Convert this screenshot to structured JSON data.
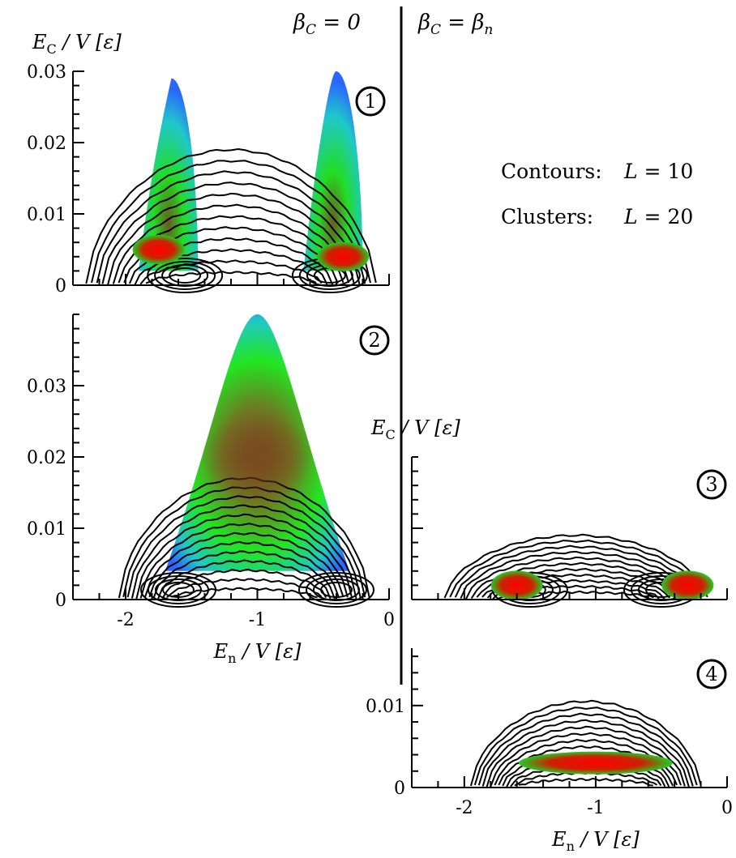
{
  "columns": {
    "left": {
      "pre": "β",
      "sub": "C",
      "mid": " = 0",
      "sub2": ""
    },
    "right": {
      "pre": "β",
      "sub": "C",
      "mid": " = β",
      "sub2": "n"
    }
  },
  "legend": [
    {
      "label": "Contours:",
      "lpre": "L",
      "lval": " = 10"
    },
    {
      "label": "Clusters:",
      "lpre": "L",
      "lval": " = 20"
    }
  ],
  "axis_text": {
    "y_pre": "E",
    "y_sub": "C",
    "y_post": " / V [ε]",
    "x_pre": "E",
    "x_sub": "n",
    "x_post": " / V [ε]"
  },
  "colors": {
    "blue": "#2a66ff",
    "cyan": "#1fc8c8",
    "green": "#22e622",
    "olive": "#8a8a28",
    "brown": "#7a4a20",
    "red": "#ee1111",
    "contour": "#000000"
  },
  "chart_data": [
    {
      "id": "panel-1",
      "type": "heatmap",
      "badge": "1",
      "xlim": [
        -2.4,
        0
      ],
      "ylim": [
        0,
        0.03
      ],
      "yticks": [
        0,
        0.01,
        0.02,
        0.03
      ],
      "ytick_labels": [
        "0",
        "0.01",
        "0.02",
        "0.03"
      ],
      "xticks": [
        -2,
        -1,
        0
      ],
      "xtick_labels": [],
      "show_ylabel": true,
      "show_xlabel": false,
      "clusters": [
        {
          "x_range": [
            -1.9,
            -1.45
          ],
          "peak_y": 0.029,
          "base_y": 0.002
        },
        {
          "x_range": [
            -0.65,
            -0.2
          ],
          "peak_y": 0.03,
          "base_y": 0.002
        }
      ],
      "hotspots": [
        {
          "x": -1.75,
          "y": 0.005,
          "color": "red"
        },
        {
          "x": -0.35,
          "y": 0.004,
          "color": "red"
        }
      ],
      "contours": {
        "x_range": [
          -2.3,
          -0.1
        ],
        "max_y": 0.019,
        "levels": 12,
        "holes": [
          -1.55,
          -0.45
        ]
      }
    },
    {
      "id": "panel-2",
      "type": "heatmap",
      "badge": "2",
      "xlim": [
        -2.4,
        0
      ],
      "ylim": [
        0,
        0.04
      ],
      "yticks": [
        0,
        0.01,
        0.02,
        0.03
      ],
      "ytick_labels": [
        "0",
        "0.01",
        "0.02",
        "0.03"
      ],
      "xticks": [
        -2,
        -1,
        0
      ],
      "xtick_labels": [
        "-2",
        "-1",
        "0"
      ],
      "show_ylabel": false,
      "show_xlabel": true,
      "clusters": [
        {
          "x_range": [
            -1.7,
            -0.3
          ],
          "peak_y": 0.04,
          "base_y": 0.004
        }
      ],
      "hotspots": [
        {
          "x": -1.0,
          "y": 0.02,
          "color": "brown"
        }
      ],
      "contours": {
        "x_range": [
          -2.05,
          -0.15
        ],
        "max_y": 0.017,
        "levels": 13,
        "holes": [
          -1.6,
          -0.4
        ]
      }
    },
    {
      "id": "panel-3",
      "type": "heatmap",
      "badge": "3",
      "xlim": [
        -2.4,
        0
      ],
      "ylim": [
        0,
        0.02
      ],
      "yticks": [
        0,
        0.01
      ],
      "ytick_labels": [],
      "xticks": [
        -2,
        -1,
        0
      ],
      "xtick_labels": [],
      "show_ylabel": true,
      "show_xlabel": false,
      "clusters": [],
      "hotspots": [
        {
          "x": -1.6,
          "y": 0.002,
          "color": "red"
        },
        {
          "x": -0.3,
          "y": 0.002,
          "color": "red"
        }
      ],
      "contours": {
        "x_range": [
          -2.15,
          -0.15
        ],
        "max_y": 0.009,
        "levels": 11,
        "holes": [
          -1.5,
          -0.5
        ]
      }
    },
    {
      "id": "panel-4",
      "type": "heatmap",
      "badge": "4",
      "xlim": [
        -2.4,
        0
      ],
      "ylim": [
        0,
        0.017
      ],
      "yticks": [
        0,
        0.01
      ],
      "ytick_labels": [
        "0",
        "0.01"
      ],
      "xticks": [
        -2,
        -1,
        0
      ],
      "xtick_labels": [
        "-2",
        "-1",
        "0"
      ],
      "show_ylabel": false,
      "show_xlabel": true,
      "clusters": [],
      "hotspots": [
        {
          "x": -1.0,
          "y": 0.003,
          "color": "red"
        }
      ],
      "contours": {
        "x_range": [
          -1.95,
          -0.2
        ],
        "max_y": 0.0105,
        "levels": 13,
        "holes": []
      }
    }
  ]
}
